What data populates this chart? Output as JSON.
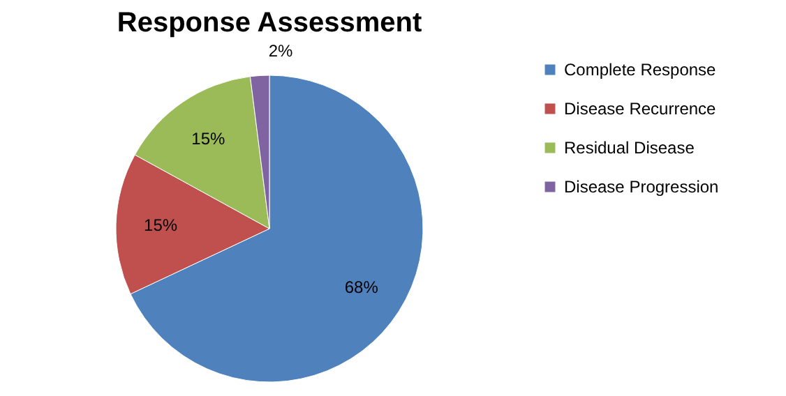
{
  "chart_data": {
    "type": "pie",
    "title": "Response Assessment",
    "categories": [
      "Complete Response",
      "Disease Recurrence",
      "Residual Disease",
      "Disease Progression"
    ],
    "values": [
      68,
      15,
      15,
      2
    ],
    "colors": [
      "#4f81bd",
      "#c0504d",
      "#9bbb59",
      "#8064a2"
    ],
    "value_labels": [
      "68%",
      "15%",
      "15%",
      "2%"
    ],
    "legend": "right"
  }
}
